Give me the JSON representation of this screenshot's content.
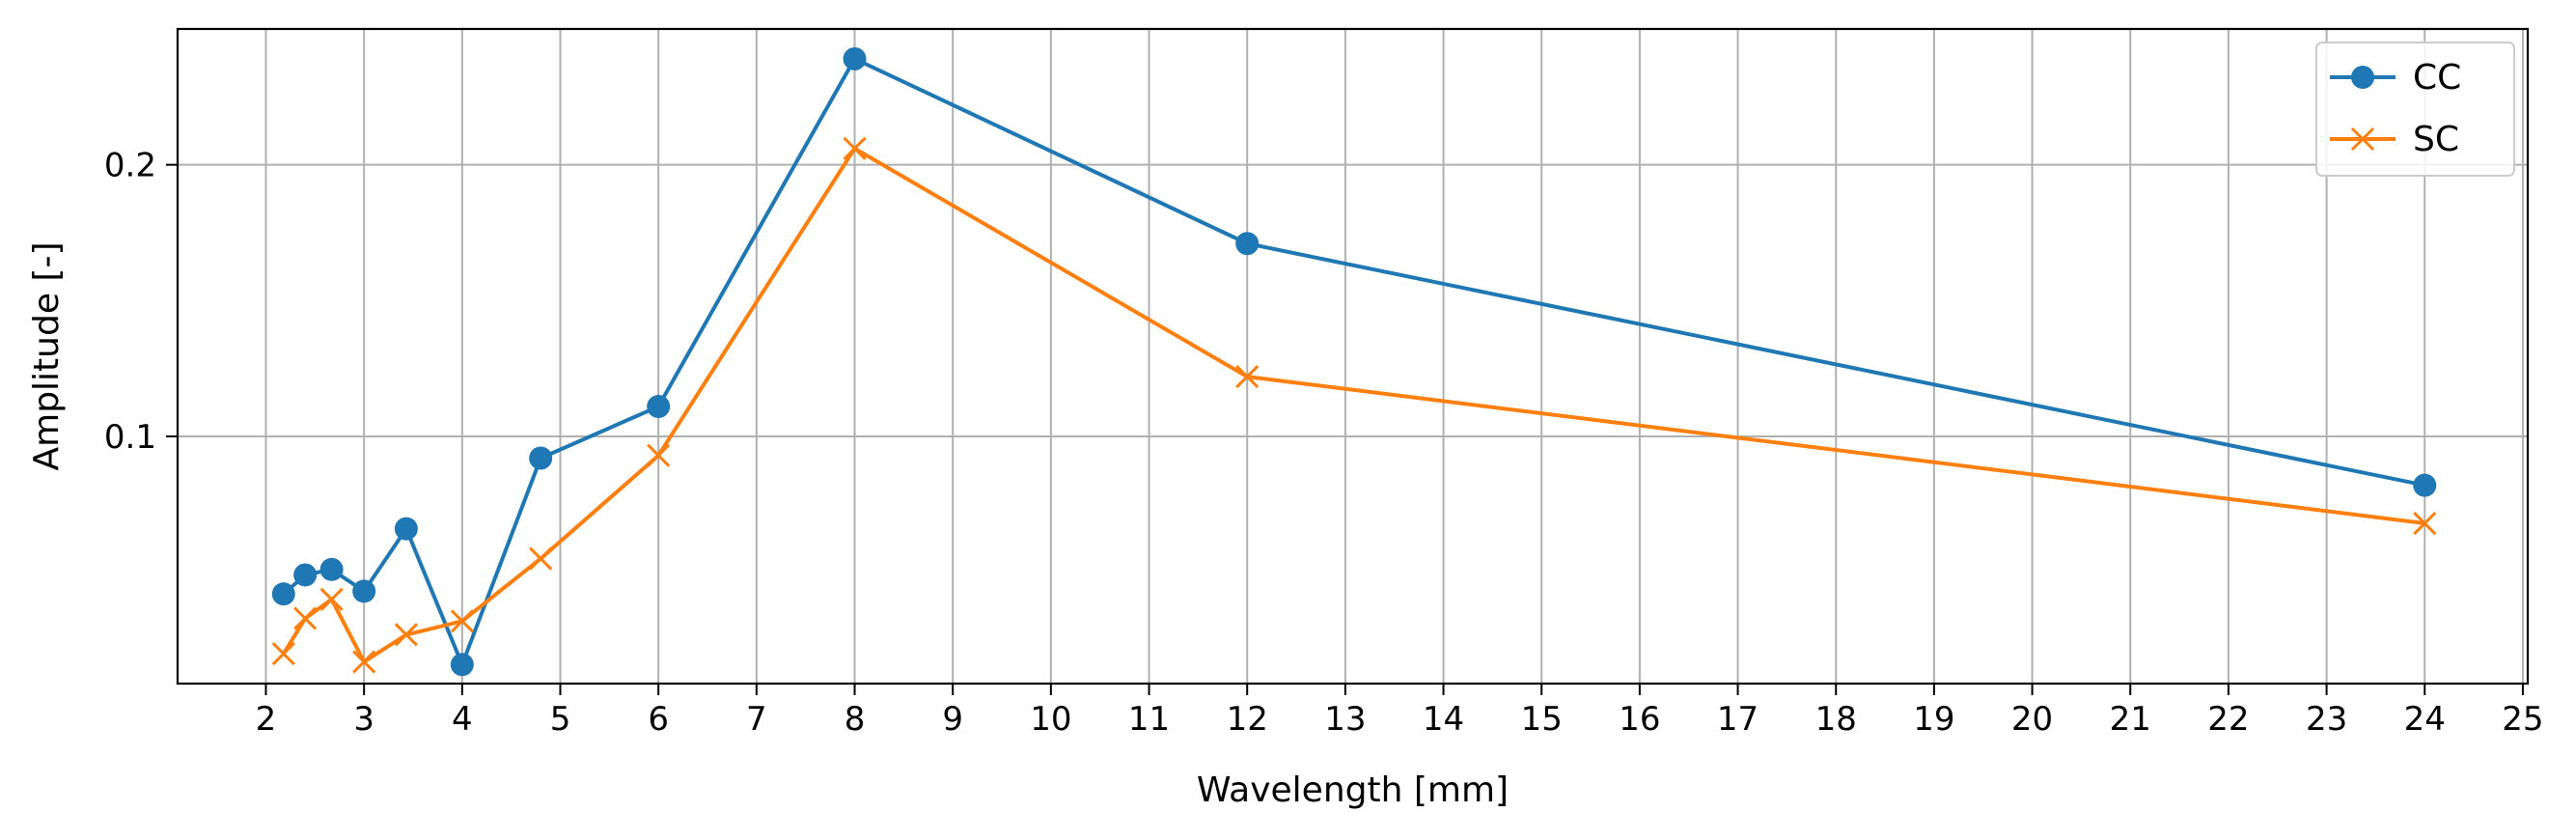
{
  "chart_data": {
    "type": "line",
    "title": "",
    "xlabel": "Wavelength [mm]",
    "ylabel": "Amplitude [-]",
    "xlim": [
      1.1,
      25.05
    ],
    "ylim": [
      0.009,
      0.25
    ],
    "xticks": [
      2,
      3,
      4,
      5,
      6,
      7,
      8,
      9,
      10,
      11,
      12,
      13,
      14,
      15,
      16,
      17,
      18,
      19,
      20,
      21,
      22,
      23,
      24,
      25
    ],
    "yticks": [
      0.1,
      0.2
    ],
    "ytick_labels": [
      "0.1",
      "0.2"
    ],
    "grid": true,
    "legend_position": "top-right",
    "series": [
      {
        "name": "CC",
        "color": "#1f77b4",
        "marker": "circle",
        "x": [
          2.18,
          2.4,
          2.67,
          3.0,
          3.43,
          4.0,
          4.8,
          6.0,
          8.0,
          12.0,
          24.0
        ],
        "y": [
          0.042,
          0.049,
          0.051,
          0.043,
          0.066,
          0.016,
          0.092,
          0.111,
          0.239,
          0.171,
          0.082
        ]
      },
      {
        "name": "SC",
        "color": "#ff7f0e",
        "marker": "x",
        "x": [
          2.18,
          2.4,
          2.67,
          3.0,
          3.43,
          4.0,
          4.8,
          6.0,
          8.0,
          12.0,
          24.0
        ],
        "y": [
          0.02,
          0.033,
          0.04,
          0.017,
          0.027,
          0.032,
          0.055,
          0.093,
          0.206,
          0.122,
          0.068
        ]
      }
    ]
  }
}
